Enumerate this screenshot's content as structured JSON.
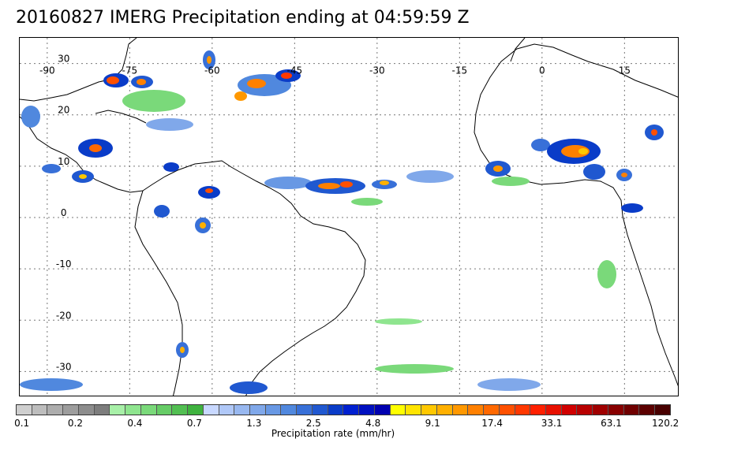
{
  "title": "20160827 IMERG Precipitation ending at 04:59:59 Z",
  "map": {
    "lon_labels": [
      "-90",
      "-75",
      "-60",
      "-45",
      "-30",
      "-15",
      "0",
      "15"
    ],
    "lat_labels": [
      "30",
      "20",
      "10",
      "0",
      "-10",
      "-20",
      "-30"
    ],
    "lon_range": [
      -95,
      25
    ],
    "lat_range": [
      -35,
      35
    ],
    "grid": "dotted",
    "coastline_color": "#000000"
  },
  "colorbar": {
    "caption": "Precipitation rate (mm/hr)",
    "tick_labels": [
      "0.1",
      "0.2",
      "0.4",
      "0.7",
      "1.3",
      "2.5",
      "4.8",
      "9.1",
      "17.4",
      "33.1",
      "63.1",
      "120.2"
    ],
    "colors": [
      "#cfcfcf",
      "#bdbdbd",
      "#adadad",
      "#9d9d9d",
      "#8d8d8d",
      "#7d7d7d",
      "#a8f0a8",
      "#8fe58f",
      "#7ad97a",
      "#66cc66",
      "#52bf52",
      "#3fb23f",
      "#c8d8ff",
      "#b0c8f8",
      "#98b8f0",
      "#80a8ea",
      "#6898e4",
      "#5088de",
      "#3870d8",
      "#2058d0",
      "#0a3cc8",
      "#0020d0",
      "#0010c0",
      "#0000b0",
      "#ffff00",
      "#ffe400",
      "#ffc800",
      "#ffb000",
      "#ff9800",
      "#ff8000",
      "#ff6800",
      "#ff5000",
      "#ff3800",
      "#ff2000",
      "#e81000",
      "#d00000",
      "#b80000",
      "#a00000",
      "#880000",
      "#700000",
      "#5c0000",
      "#480000"
    ]
  }
}
